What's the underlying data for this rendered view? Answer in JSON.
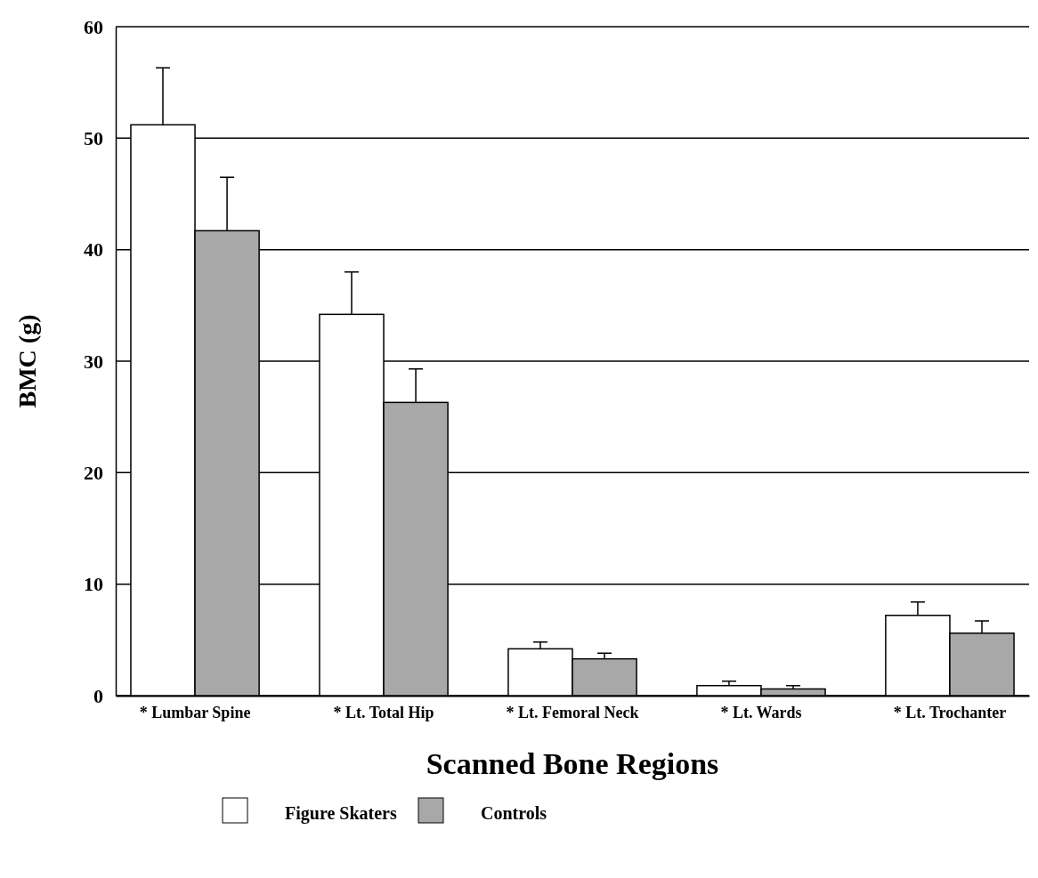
{
  "chart_data": {
    "type": "bar",
    "xlabel": "Scanned Bone Regions",
    "ylabel": "BMC (g)",
    "categories": [
      "* Lumbar Spine",
      "* Lt. Total Hip",
      "* Lt. Femoral Neck",
      "* Lt. Wards",
      "* Lt. Trochanter"
    ],
    "series": [
      {
        "name": "Figure Skaters",
        "color": "#ffffff",
        "values": [
          51.2,
          34.2,
          4.2,
          0.9,
          7.2
        ],
        "errors": [
          5.1,
          3.8,
          0.6,
          0.4,
          1.2
        ]
      },
      {
        "name": "Controls",
        "color": "#a8a8a8",
        "values": [
          41.7,
          26.3,
          3.3,
          0.6,
          5.6
        ],
        "errors": [
          4.8,
          3.0,
          0.5,
          0.3,
          1.1
        ]
      }
    ],
    "ylim": [
      0,
      60
    ],
    "yticks": [
      0,
      10,
      20,
      30,
      40,
      50,
      60
    ],
    "grid": "y",
    "legend": "bottom"
  }
}
